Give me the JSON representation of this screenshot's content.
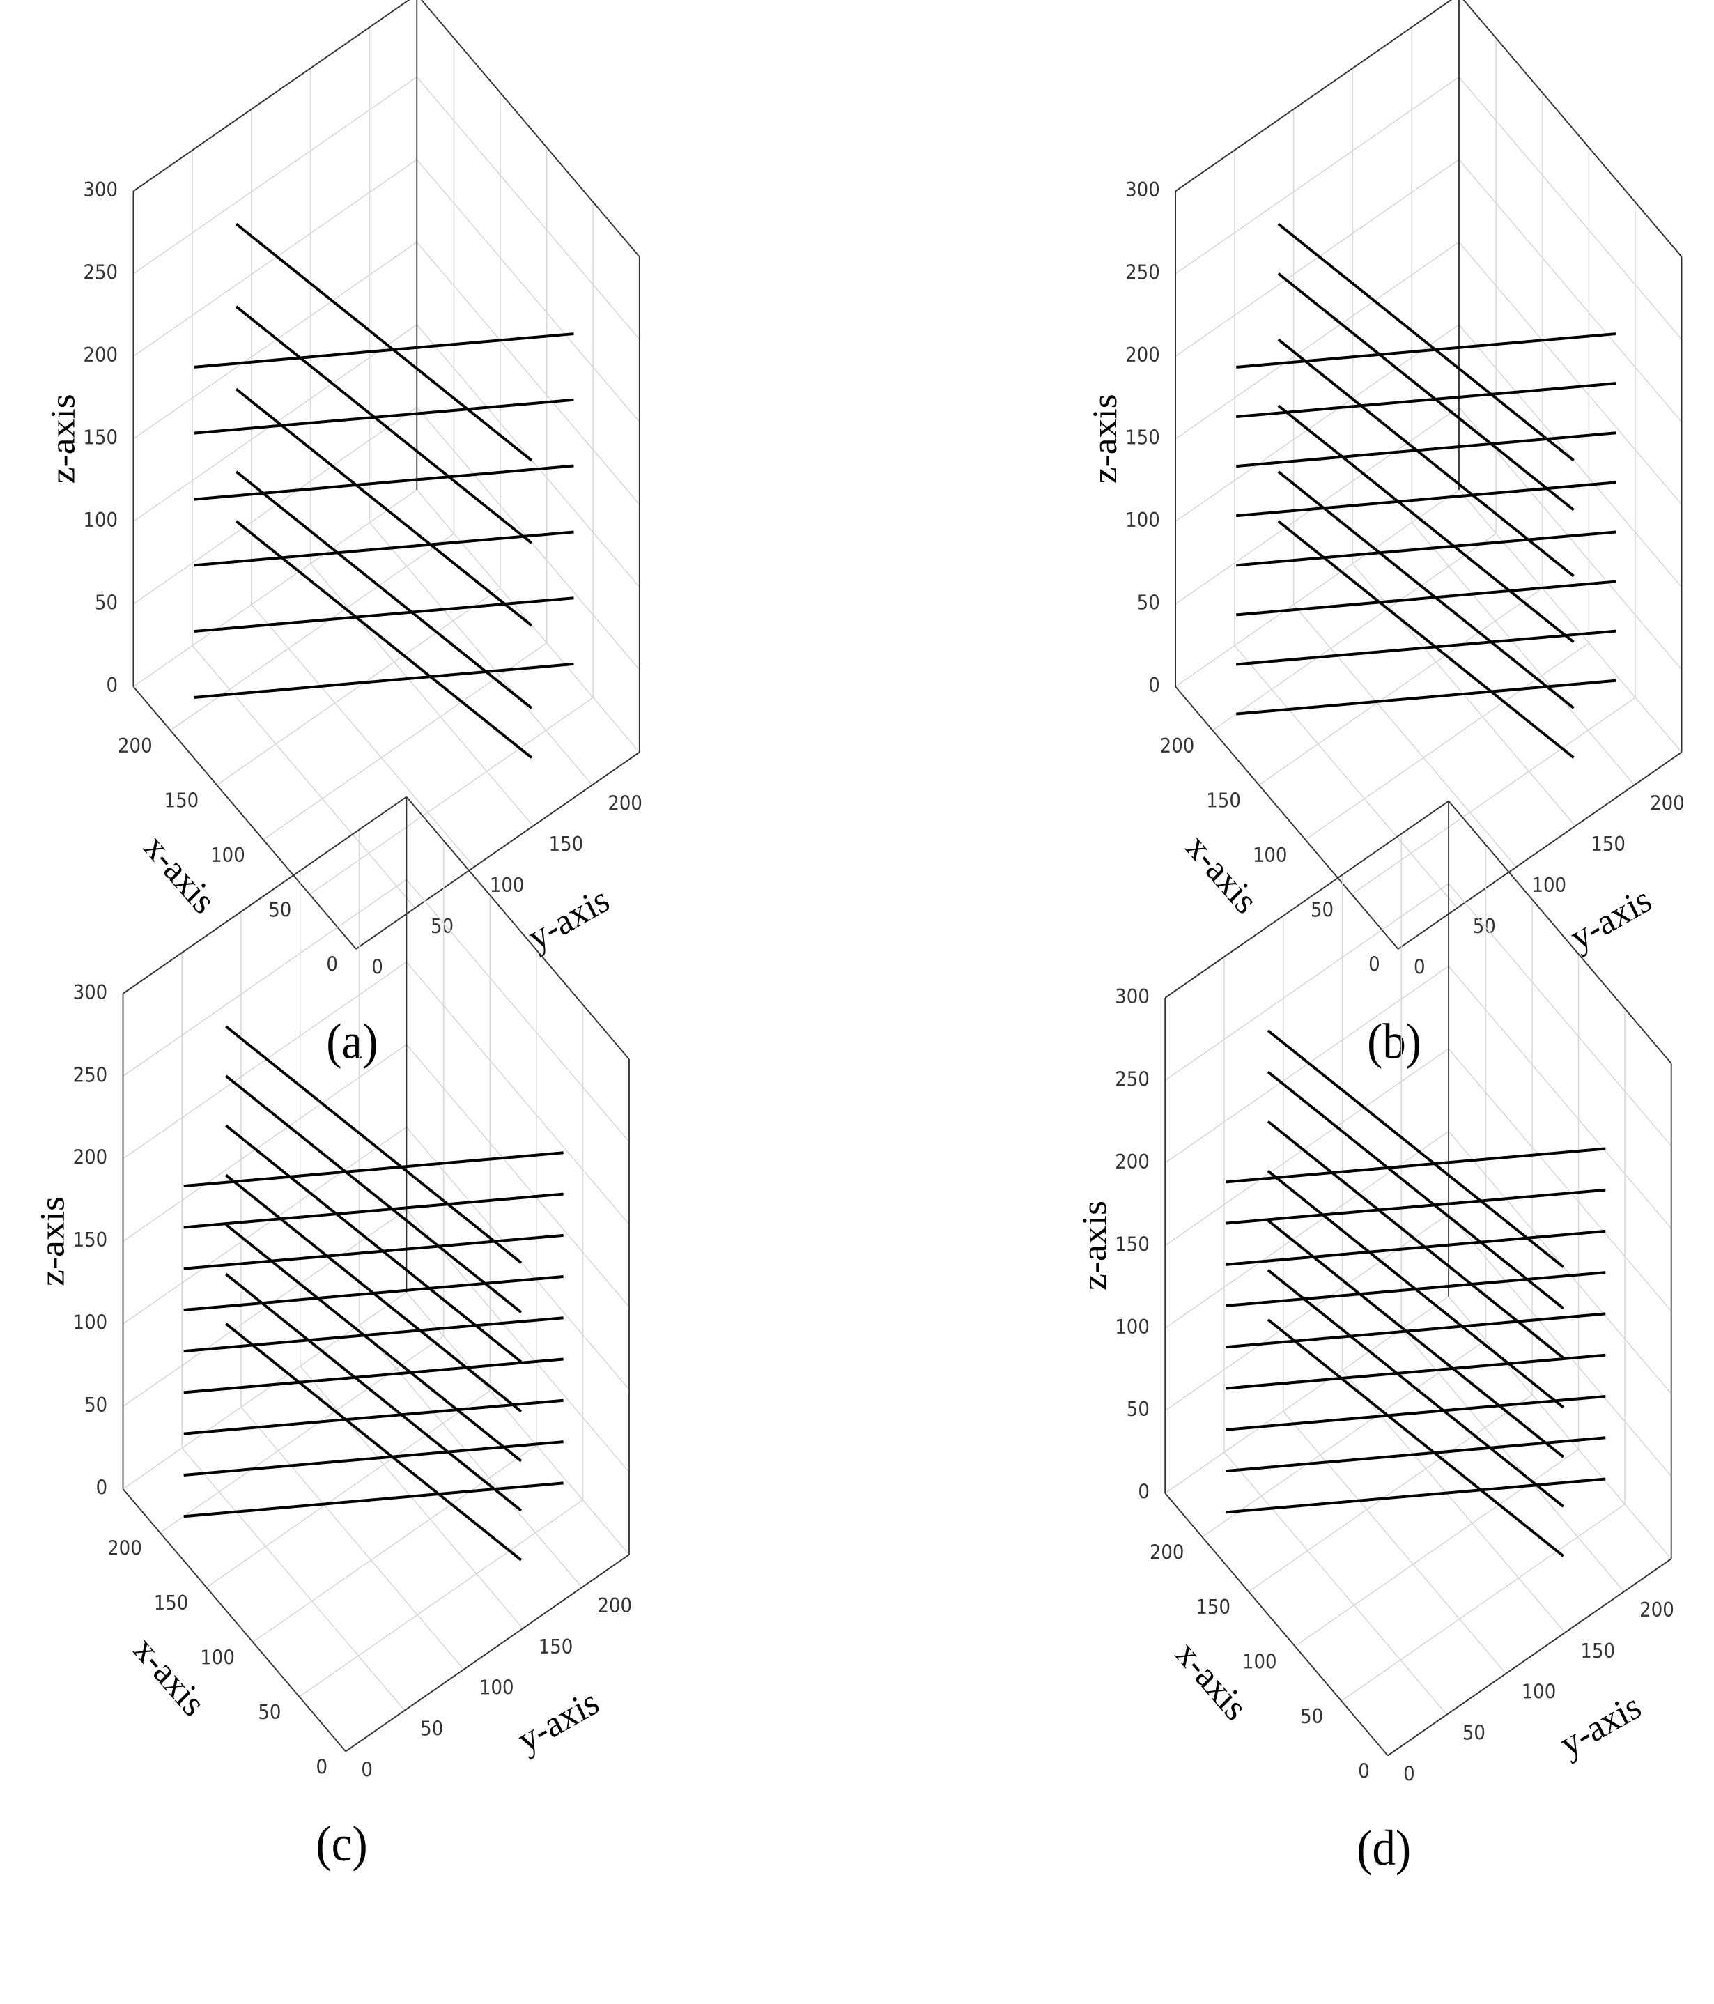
{
  "chart_data": [
    {
      "type": "line3d",
      "panel_label": "(a)",
      "xlabel": "x-axis",
      "ylabel": "y-axis",
      "zlabel": "z-axis",
      "xlim": [
        0,
        240
      ],
      "ylim": [
        0,
        240
      ],
      "zlim": [
        0,
        300
      ],
      "xticks": [
        0,
        50,
        100,
        150,
        200
      ],
      "yticks": [
        0,
        50,
        100,
        150,
        200
      ],
      "zticks": [
        0,
        50,
        100,
        150,
        200,
        250,
        300
      ],
      "color": "#000000",
      "grid": true,
      "series": [
        {
          "x": [
            200,
            20
          ],
          "y": [
            20,
            200
          ],
          "z": [
            10,
            60
          ]
        },
        {
          "x": [
            200,
            20
          ],
          "y": [
            20,
            200
          ],
          "z": [
            50,
            100
          ]
        },
        {
          "x": [
            200,
            20
          ],
          "y": [
            20,
            200
          ],
          "z": [
            90,
            140
          ]
        },
        {
          "x": [
            200,
            20
          ],
          "y": [
            20,
            200
          ],
          "z": [
            130,
            180
          ]
        },
        {
          "x": [
            200,
            20
          ],
          "y": [
            20,
            200
          ],
          "z": [
            170,
            220
          ]
        },
        {
          "x": [
            200,
            20
          ],
          "y": [
            20,
            200
          ],
          "z": [
            210,
            260
          ]
        },
        {
          "x": [
            180,
            40
          ],
          "y": [
            40,
            180
          ],
          "z": [
            300,
            180
          ]
        },
        {
          "x": [
            180,
            40
          ],
          "y": [
            40,
            180
          ],
          "z": [
            250,
            130
          ]
        },
        {
          "x": [
            180,
            40
          ],
          "y": [
            40,
            180
          ],
          "z": [
            200,
            80
          ]
        },
        {
          "x": [
            180,
            40
          ],
          "y": [
            40,
            180
          ],
          "z": [
            150,
            30
          ]
        },
        {
          "x": [
            180,
            40
          ],
          "y": [
            40,
            180
          ],
          "z": [
            120,
            0
          ]
        }
      ]
    },
    {
      "type": "line3d",
      "panel_label": "(b)",
      "xlabel": "x-axis",
      "ylabel": "y-axis",
      "zlabel": "z-axis",
      "xlim": [
        0,
        240
      ],
      "ylim": [
        0,
        240
      ],
      "zlim": [
        0,
        300
      ],
      "xticks": [
        0,
        50,
        100,
        150,
        200
      ],
      "yticks": [
        0,
        50,
        100,
        150,
        200
      ],
      "zticks": [
        0,
        50,
        100,
        150,
        200,
        250,
        300
      ],
      "color": "#000000",
      "grid": true,
      "series": [
        {
          "x": [
            200,
            20
          ],
          "y": [
            20,
            200
          ],
          "z": [
            0,
            50
          ]
        },
        {
          "x": [
            200,
            20
          ],
          "y": [
            20,
            200
          ],
          "z": [
            30,
            80
          ]
        },
        {
          "x": [
            200,
            20
          ],
          "y": [
            20,
            200
          ],
          "z": [
            60,
            110
          ]
        },
        {
          "x": [
            200,
            20
          ],
          "y": [
            20,
            200
          ],
          "z": [
            90,
            140
          ]
        },
        {
          "x": [
            200,
            20
          ],
          "y": [
            20,
            200
          ],
          "z": [
            120,
            170
          ]
        },
        {
          "x": [
            200,
            20
          ],
          "y": [
            20,
            200
          ],
          "z": [
            150,
            200
          ]
        },
        {
          "x": [
            200,
            20
          ],
          "y": [
            20,
            200
          ],
          "z": [
            180,
            230
          ]
        },
        {
          "x": [
            200,
            20
          ],
          "y": [
            20,
            200
          ],
          "z": [
            210,
            260
          ]
        },
        {
          "x": [
            180,
            40
          ],
          "y": [
            40,
            180
          ],
          "z": [
            300,
            180
          ]
        },
        {
          "x": [
            180,
            40
          ],
          "y": [
            40,
            180
          ],
          "z": [
            270,
            150
          ]
        },
        {
          "x": [
            180,
            40
          ],
          "y": [
            40,
            180
          ],
          "z": [
            230,
            110
          ]
        },
        {
          "x": [
            180,
            40
          ],
          "y": [
            40,
            180
          ],
          "z": [
            190,
            70
          ]
        },
        {
          "x": [
            180,
            40
          ],
          "y": [
            40,
            180
          ],
          "z": [
            150,
            30
          ]
        },
        {
          "x": [
            180,
            40
          ],
          "y": [
            40,
            180
          ],
          "z": [
            120,
            0
          ]
        }
      ]
    },
    {
      "type": "line3d",
      "panel_label": "(c)",
      "xlabel": "x-axis",
      "ylabel": "y-axis",
      "zlabel": "z-axis",
      "xlim": [
        0,
        240
      ],
      "ylim": [
        0,
        240
      ],
      "zlim": [
        0,
        300
      ],
      "xticks": [
        0,
        50,
        100,
        150,
        200
      ],
      "yticks": [
        0,
        50,
        100,
        150,
        200
      ],
      "zticks": [
        0,
        50,
        100,
        150,
        200,
        250,
        300
      ],
      "color": "#000000",
      "grid": true,
      "series": [
        {
          "x": [
            200,
            20
          ],
          "y": [
            20,
            200
          ],
          "z": [
            0,
            50
          ]
        },
        {
          "x": [
            200,
            20
          ],
          "y": [
            20,
            200
          ],
          "z": [
            25,
            75
          ]
        },
        {
          "x": [
            200,
            20
          ],
          "y": [
            20,
            200
          ],
          "z": [
            50,
            100
          ]
        },
        {
          "x": [
            200,
            20
          ],
          "y": [
            20,
            200
          ],
          "z": [
            75,
            125
          ]
        },
        {
          "x": [
            200,
            20
          ],
          "y": [
            20,
            200
          ],
          "z": [
            100,
            150
          ]
        },
        {
          "x": [
            200,
            20
          ],
          "y": [
            20,
            200
          ],
          "z": [
            125,
            175
          ]
        },
        {
          "x": [
            200,
            20
          ],
          "y": [
            20,
            200
          ],
          "z": [
            150,
            200
          ]
        },
        {
          "x": [
            200,
            20
          ],
          "y": [
            20,
            200
          ],
          "z": [
            175,
            225
          ]
        },
        {
          "x": [
            200,
            20
          ],
          "y": [
            20,
            200
          ],
          "z": [
            200,
            250
          ]
        },
        {
          "x": [
            180,
            40
          ],
          "y": [
            40,
            180
          ],
          "z": [
            300,
            180
          ]
        },
        {
          "x": [
            180,
            40
          ],
          "y": [
            40,
            180
          ],
          "z": [
            270,
            150
          ]
        },
        {
          "x": [
            180,
            40
          ],
          "y": [
            40,
            180
          ],
          "z": [
            240,
            120
          ]
        },
        {
          "x": [
            180,
            40
          ],
          "y": [
            40,
            180
          ],
          "z": [
            210,
            90
          ]
        },
        {
          "x": [
            180,
            40
          ],
          "y": [
            40,
            180
          ],
          "z": [
            180,
            60
          ]
        },
        {
          "x": [
            180,
            40
          ],
          "y": [
            40,
            180
          ],
          "z": [
            150,
            30
          ]
        },
        {
          "x": [
            180,
            40
          ],
          "y": [
            40,
            180
          ],
          "z": [
            120,
            0
          ]
        }
      ]
    },
    {
      "type": "line3d",
      "panel_label": "(d)",
      "xlabel": "x-axis",
      "ylabel": "y-axis",
      "zlabel": "z-axis",
      "xlim": [
        0,
        240
      ],
      "ylim": [
        0,
        240
      ],
      "zlim": [
        0,
        300
      ],
      "xticks": [
        0,
        50,
        100,
        150,
        200
      ],
      "yticks": [
        0,
        50,
        100,
        150,
        200
      ],
      "zticks": [
        0,
        50,
        100,
        150,
        200,
        250,
        300
      ],
      "color": "#000000",
      "grid": true,
      "series": [
        {
          "x": [
            200,
            20
          ],
          "y": [
            20,
            200
          ],
          "z": [
            5,
            55
          ]
        },
        {
          "x": [
            200,
            20
          ],
          "y": [
            20,
            200
          ],
          "z": [
            30,
            80
          ]
        },
        {
          "x": [
            200,
            20
          ],
          "y": [
            20,
            200
          ],
          "z": [
            55,
            105
          ]
        },
        {
          "x": [
            200,
            20
          ],
          "y": [
            20,
            200
          ],
          "z": [
            80,
            130
          ]
        },
        {
          "x": [
            200,
            20
          ],
          "y": [
            20,
            200
          ],
          "z": [
            105,
            155
          ]
        },
        {
          "x": [
            200,
            20
          ],
          "y": [
            20,
            200
          ],
          "z": [
            130,
            180
          ]
        },
        {
          "x": [
            200,
            20
          ],
          "y": [
            20,
            200
          ],
          "z": [
            155,
            205
          ]
        },
        {
          "x": [
            200,
            20
          ],
          "y": [
            20,
            200
          ],
          "z": [
            180,
            230
          ]
        },
        {
          "x": [
            200,
            20
          ],
          "y": [
            20,
            200
          ],
          "z": [
            205,
            255
          ]
        },
        {
          "x": [
            180,
            40
          ],
          "y": [
            40,
            180
          ],
          "z": [
            300,
            180
          ]
        },
        {
          "x": [
            180,
            40
          ],
          "y": [
            40,
            180
          ],
          "z": [
            275,
            155
          ]
        },
        {
          "x": [
            180,
            40
          ],
          "y": [
            40,
            180
          ],
          "z": [
            245,
            125
          ]
        },
        {
          "x": [
            180,
            40
          ],
          "y": [
            40,
            180
          ],
          "z": [
            215,
            95
          ]
        },
        {
          "x": [
            180,
            40
          ],
          "y": [
            40,
            180
          ],
          "z": [
            185,
            65
          ]
        },
        {
          "x": [
            180,
            40
          ],
          "y": [
            40,
            180
          ],
          "z": [
            155,
            35
          ]
        },
        {
          "x": [
            180,
            40
          ],
          "y": [
            40,
            180
          ],
          "z": [
            125,
            5
          ]
        }
      ]
    }
  ]
}
